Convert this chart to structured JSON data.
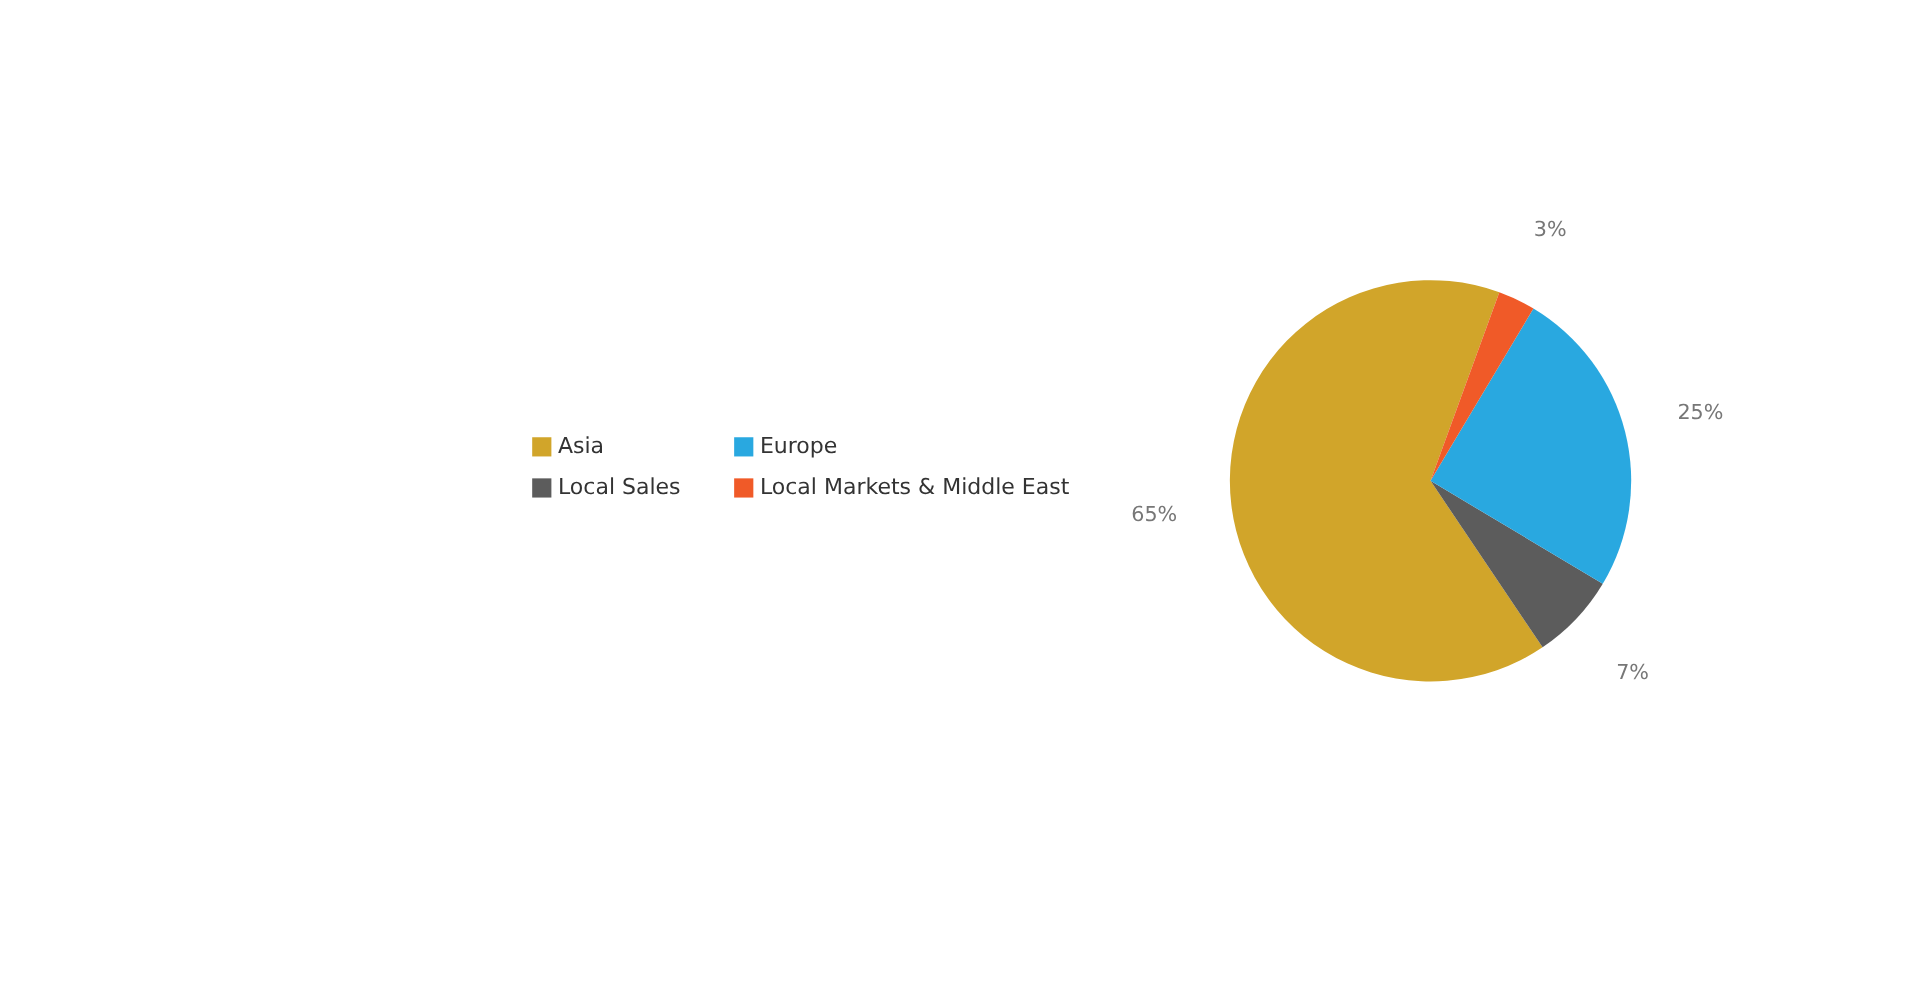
{
  "chart_data": {
    "type": "pie",
    "categories": [
      "Asia",
      "Local Sales",
      "Europe",
      "Local Markets & Middle East"
    ],
    "values": [
      65,
      7,
      25,
      3
    ],
    "colors": [
      "#d1a52a",
      "#5c5c5c",
      "#29a8e0",
      "#f05a28"
    ],
    "value_labels": [
      "65%",
      "7%",
      "25%",
      "3%"
    ],
    "legend": "left"
  }
}
